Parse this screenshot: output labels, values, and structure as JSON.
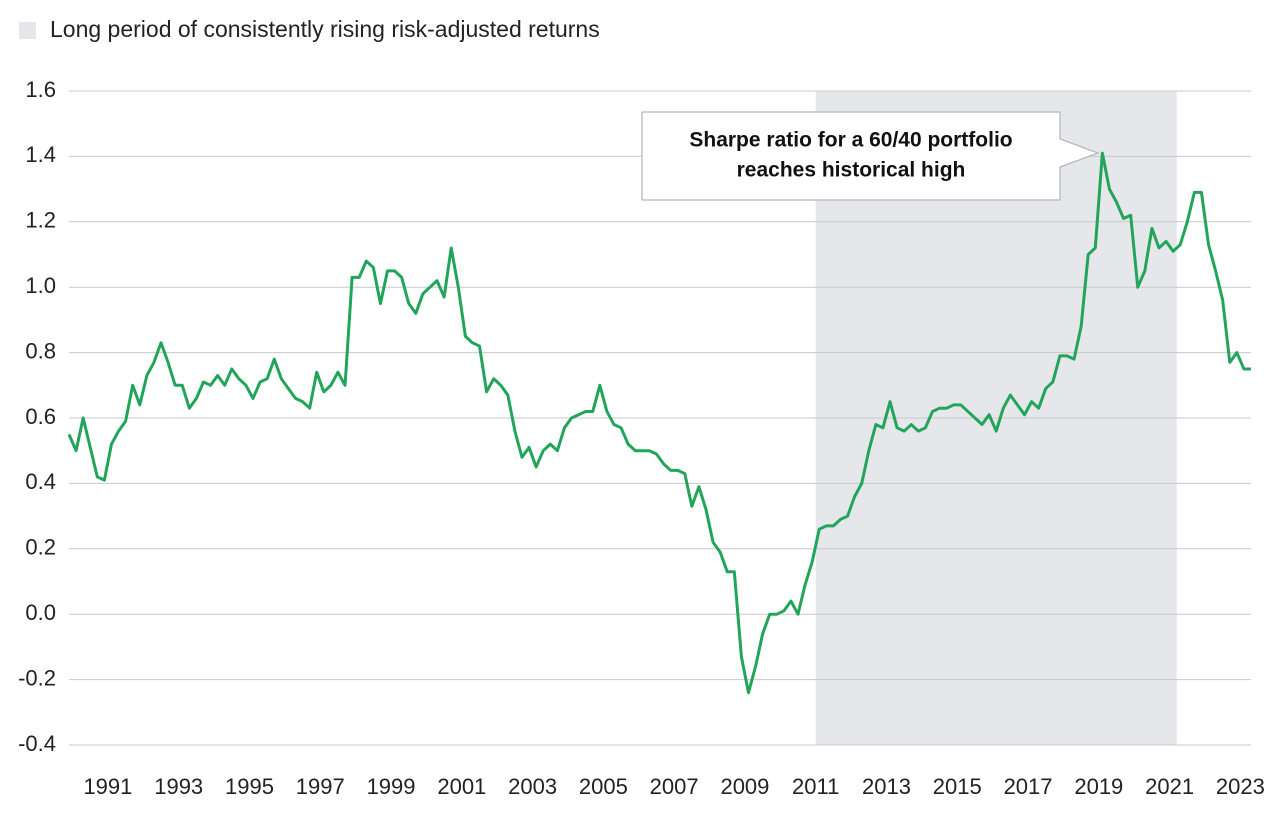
{
  "chart_data": {
    "type": "line",
    "highlight": {
      "label": "Long period of consistently rising risk-adjusted returns",
      "range": [
        2011.0,
        2021.2
      ],
      "color": "#e6e7ea"
    },
    "annotation": [
      "Sharpe ratio for a 60/40 portfolio",
      "reaches historical high"
    ],
    "x": [
      1989.9,
      1990.1,
      1990.3,
      1990.5,
      1990.7,
      1990.9,
      1991.1,
      1991.3,
      1991.5,
      1991.7,
      1991.9,
      1992.1,
      1992.3,
      1992.5,
      1992.7,
      1992.9,
      1993.1,
      1993.3,
      1993.5,
      1993.7,
      1993.9,
      1994.1,
      1994.3,
      1994.5,
      1994.7,
      1994.9,
      1995.1,
      1995.3,
      1995.5,
      1995.7,
      1995.9,
      1996.1,
      1996.3,
      1996.5,
      1996.7,
      1996.9,
      1997.1,
      1997.3,
      1997.5,
      1997.7,
      1997.9,
      1998.1,
      1998.3,
      1998.5,
      1998.7,
      1998.9,
      1999.1,
      1999.3,
      1999.5,
      1999.7,
      1999.9,
      2000.1,
      2000.3,
      2000.5,
      2000.7,
      2000.9,
      2001.1,
      2001.3,
      2001.5,
      2001.7,
      2001.9,
      2002.1,
      2002.3,
      2002.5,
      2002.7,
      2002.9,
      2003.1,
      2003.3,
      2003.5,
      2003.7,
      2003.9,
      2004.1,
      2004.3,
      2004.5,
      2004.7,
      2004.9,
      2005.1,
      2005.3,
      2005.5,
      2005.7,
      2005.9,
      2006.1,
      2006.3,
      2006.5,
      2006.7,
      2006.9,
      2007.1,
      2007.3,
      2007.5,
      2007.7,
      2007.9,
      2008.1,
      2008.3,
      2008.5,
      2008.7,
      2008.9,
      2009.1,
      2009.3,
      2009.5,
      2009.7,
      2009.9,
      2010.1,
      2010.3,
      2010.5,
      2010.7,
      2010.9,
      2011.1,
      2011.3,
      2011.5,
      2011.7,
      2011.9,
      2012.1,
      2012.3,
      2012.5,
      2012.7,
      2012.9,
      2013.1,
      2013.3,
      2013.5,
      2013.7,
      2013.9,
      2014.1,
      2014.3,
      2014.5,
      2014.7,
      2014.9,
      2015.1,
      2015.3,
      2015.5,
      2015.7,
      2015.9,
      2016.1,
      2016.3,
      2016.5,
      2016.7,
      2016.9,
      2017.1,
      2017.3,
      2017.5,
      2017.7,
      2017.9,
      2018.1,
      2018.3,
      2018.5,
      2018.7,
      2018.9,
      2019.1,
      2019.3,
      2019.5,
      2019.7,
      2019.9,
      2020.1,
      2020.3,
      2020.5,
      2020.7,
      2020.9,
      2021.1,
      2021.3,
      2021.5,
      2021.7,
      2021.9,
      2022.1,
      2022.3,
      2022.5,
      2022.7,
      2022.9,
      2023.1,
      2023.3
    ],
    "series": [
      {
        "color": "#22a55b",
        "values": [
          0.55,
          0.5,
          0.6,
          0.51,
          0.42,
          0.41,
          0.52,
          0.56,
          0.59,
          0.7,
          0.64,
          0.73,
          0.77,
          0.83,
          0.77,
          0.7,
          0.7,
          0.63,
          0.66,
          0.71,
          0.7,
          0.73,
          0.7,
          0.75,
          0.72,
          0.7,
          0.66,
          0.71,
          0.72,
          0.78,
          0.72,
          0.69,
          0.66,
          0.65,
          0.63,
          0.74,
          0.68,
          0.7,
          0.74,
          0.7,
          1.03,
          1.03,
          1.08,
          1.06,
          0.95,
          1.05,
          1.05,
          1.03,
          0.95,
          0.92,
          0.98,
          1.0,
          1.02,
          0.97,
          1.12,
          1.0,
          0.85,
          0.83,
          0.82,
          0.68,
          0.72,
          0.7,
          0.67,
          0.56,
          0.48,
          0.51,
          0.45,
          0.5,
          0.52,
          0.5,
          0.57,
          0.6,
          0.61,
          0.62,
          0.62,
          0.7,
          0.62,
          0.58,
          0.57,
          0.52,
          0.5,
          0.5,
          0.5,
          0.49,
          0.46,
          0.44,
          0.44,
          0.43,
          0.33,
          0.39,
          0.32,
          0.22,
          0.19,
          0.13,
          0.13,
          -0.13,
          -0.24,
          -0.16,
          -0.06,
          0.0,
          0.0,
          0.01,
          0.04,
          0.0,
          0.09,
          0.16,
          0.26,
          0.27,
          0.27,
          0.29,
          0.3,
          0.36,
          0.4,
          0.5,
          0.58,
          0.57,
          0.65,
          0.57,
          0.56,
          0.58,
          0.56,
          0.57,
          0.62,
          0.63,
          0.63,
          0.64,
          0.64,
          0.62,
          0.6,
          0.58,
          0.61,
          0.56,
          0.63,
          0.67,
          0.64,
          0.61,
          0.65,
          0.63,
          0.69,
          0.71,
          0.79,
          0.79,
          0.78,
          0.88,
          1.1,
          1.12,
          1.41,
          1.3,
          1.26,
          1.21,
          1.22,
          1.0,
          1.05,
          1.18,
          1.12,
          1.14,
          1.11,
          1.13,
          1.2,
          1.29,
          1.29,
          1.13,
          1.05,
          0.96,
          0.77,
          0.8,
          0.75,
          0.75
        ]
      }
    ],
    "xlim": [
      1989.9,
      2023.3
    ],
    "xticks": [
      1991,
      1993,
      1995,
      1997,
      1999,
      2001,
      2003,
      2005,
      2007,
      2009,
      2011,
      2013,
      2015,
      2017,
      2019,
      2021,
      2023
    ],
    "ylim": [
      -0.4,
      1.6
    ],
    "yticks": [
      -0.4,
      -0.2,
      {
        "value": 0,
        "label": "0.0"
      },
      0.2,
      0.4,
      0.6,
      0.8,
      {
        "value": 1,
        "label": "1.0"
      },
      1.2,
      1.4,
      1.6
    ],
    "grid": true
  }
}
